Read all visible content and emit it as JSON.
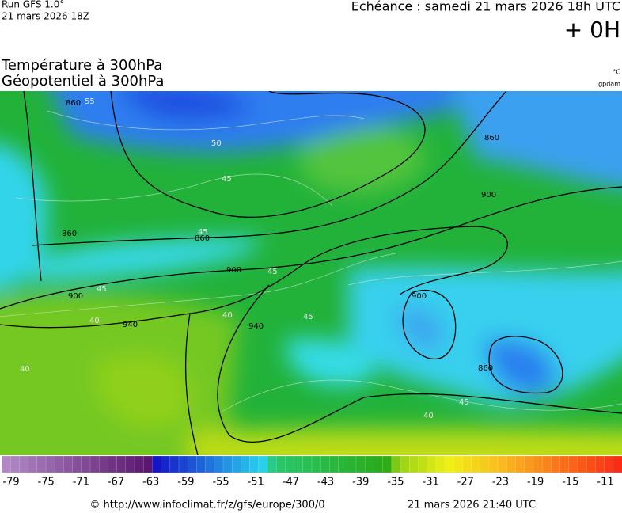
{
  "header": {
    "run": "Run GFS 1.0°",
    "run_date": "21 mars 2026 18Z",
    "forecast": "Echéance : samedi 21 mars 2026 18h UTC",
    "lead": "+ 0H",
    "title_temp": "Température à 300hPa",
    "title_geo": "Géopotentiel à 300hPa",
    "unit_temp": "°C",
    "unit_geo": "gpdam"
  },
  "map": {
    "geopotential_labels": [
      860,
      860,
      900,
      860,
      900,
      900,
      940,
      940,
      900,
      860,
      860
    ],
    "temperature_labels": [
      55,
      50,
      45,
      45,
      45,
      45,
      40,
      40,
      45,
      40,
      40,
      45
    ]
  },
  "colorbar": {
    "ticks": [
      -79,
      -75,
      -71,
      -67,
      -63,
      -59,
      -55,
      -51,
      -47,
      -43,
      -39,
      -35,
      -31,
      -27,
      -23,
      -19,
      -15,
      -11
    ]
  },
  "footer": {
    "url": "© http://www.infoclimat.fr/z/gfs/europe/300/0",
    "timestamp": "21 mars 2026 21:40 UTC"
  }
}
